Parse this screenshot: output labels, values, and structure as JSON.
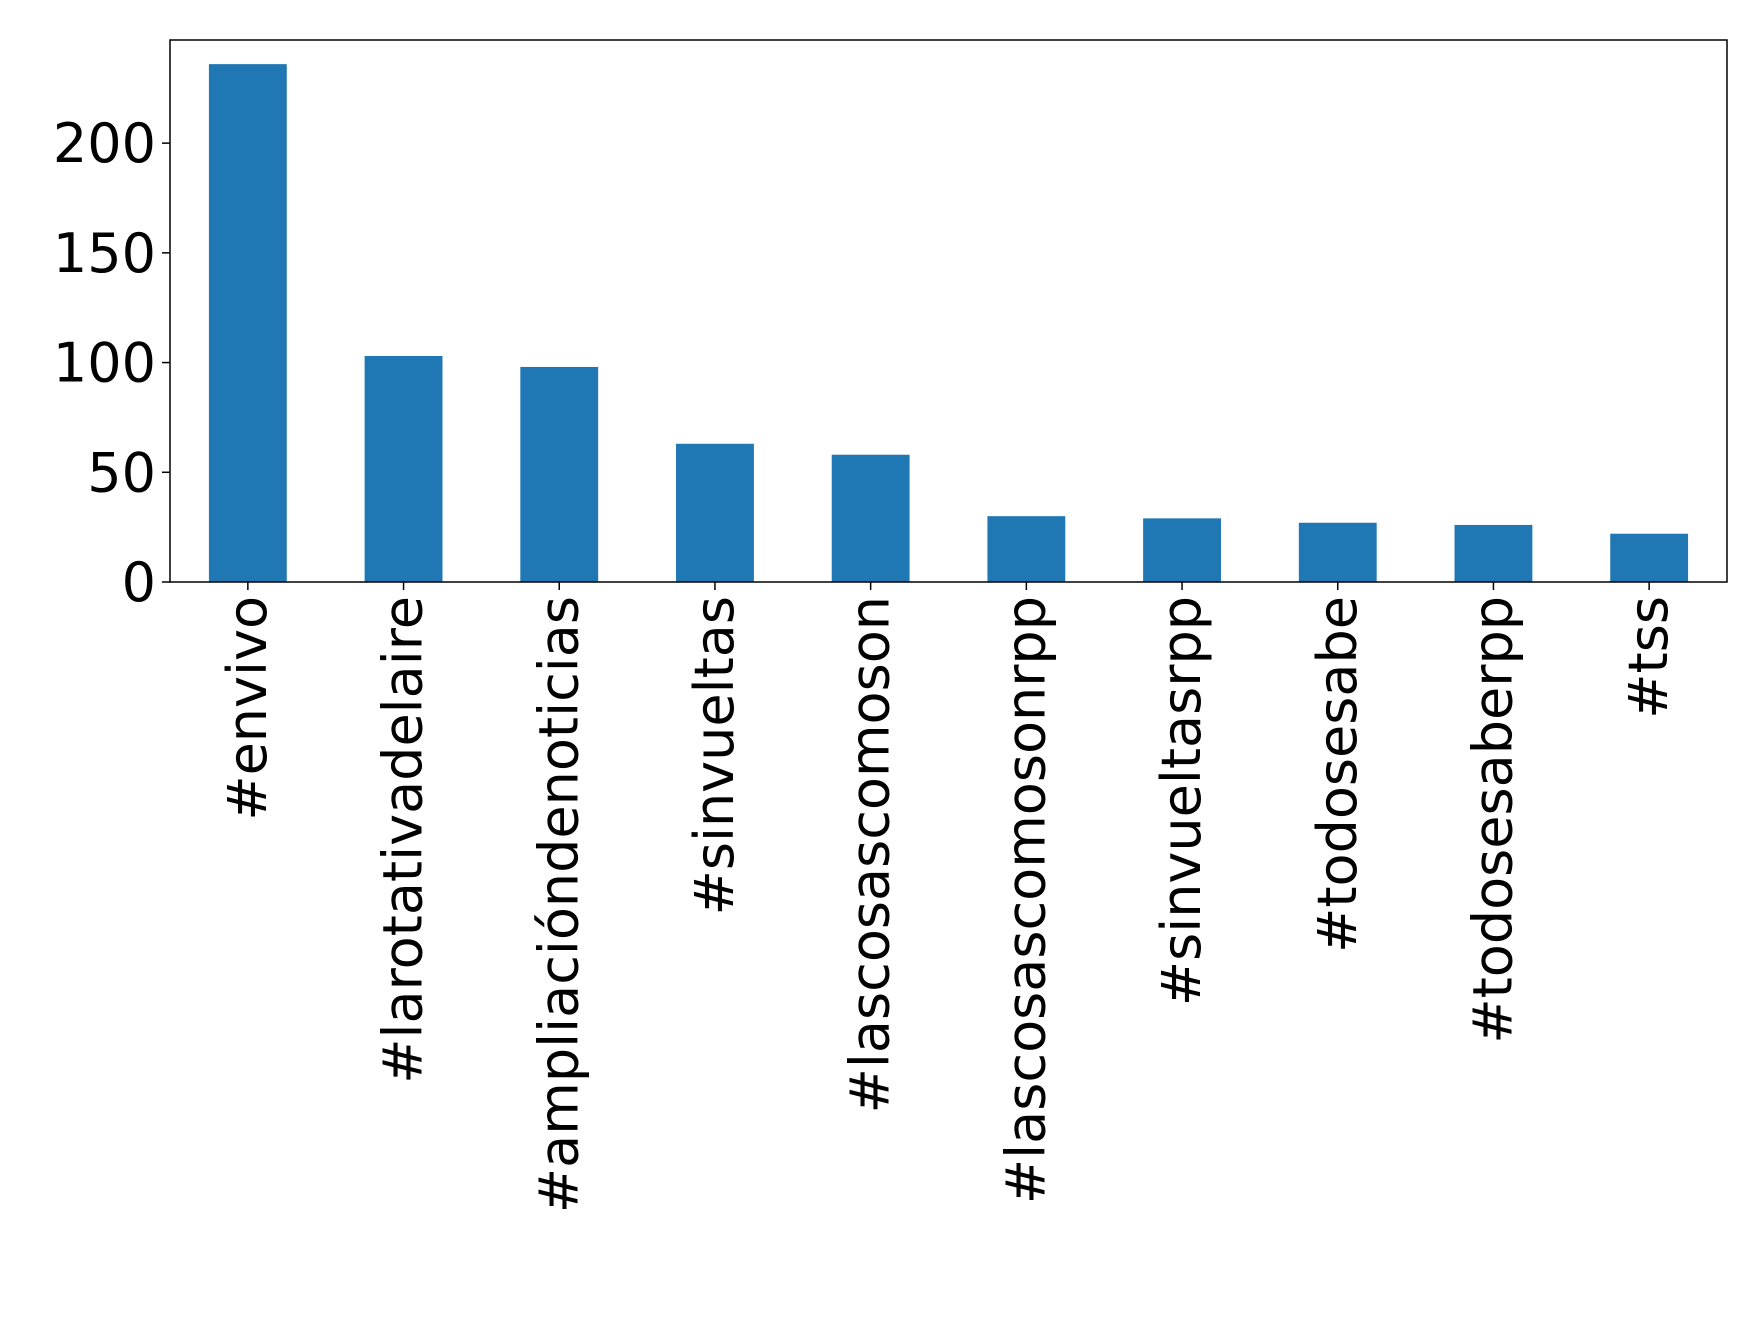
{
  "chart_data": {
    "type": "bar",
    "categories": [
      "#envivo",
      "#larotativadelaire",
      "#ampliacióndenoticias",
      "#sinvueltas",
      "#lascosascomoson",
      "#lascosascomosonrpp",
      "#sinvueltasrpp",
      "#todosesabe",
      "#todosesaberpp",
      "#tss"
    ],
    "values": [
      236,
      103,
      98,
      63,
      58,
      30,
      29,
      27,
      26,
      22
    ],
    "ylim": [
      0,
      247
    ],
    "yticks": [
      0,
      50,
      100,
      150,
      200
    ],
    "title": "",
    "xlabel": "",
    "ylabel": "",
    "bar_color": "#1f77b4",
    "grid": false,
    "legend": "none"
  }
}
